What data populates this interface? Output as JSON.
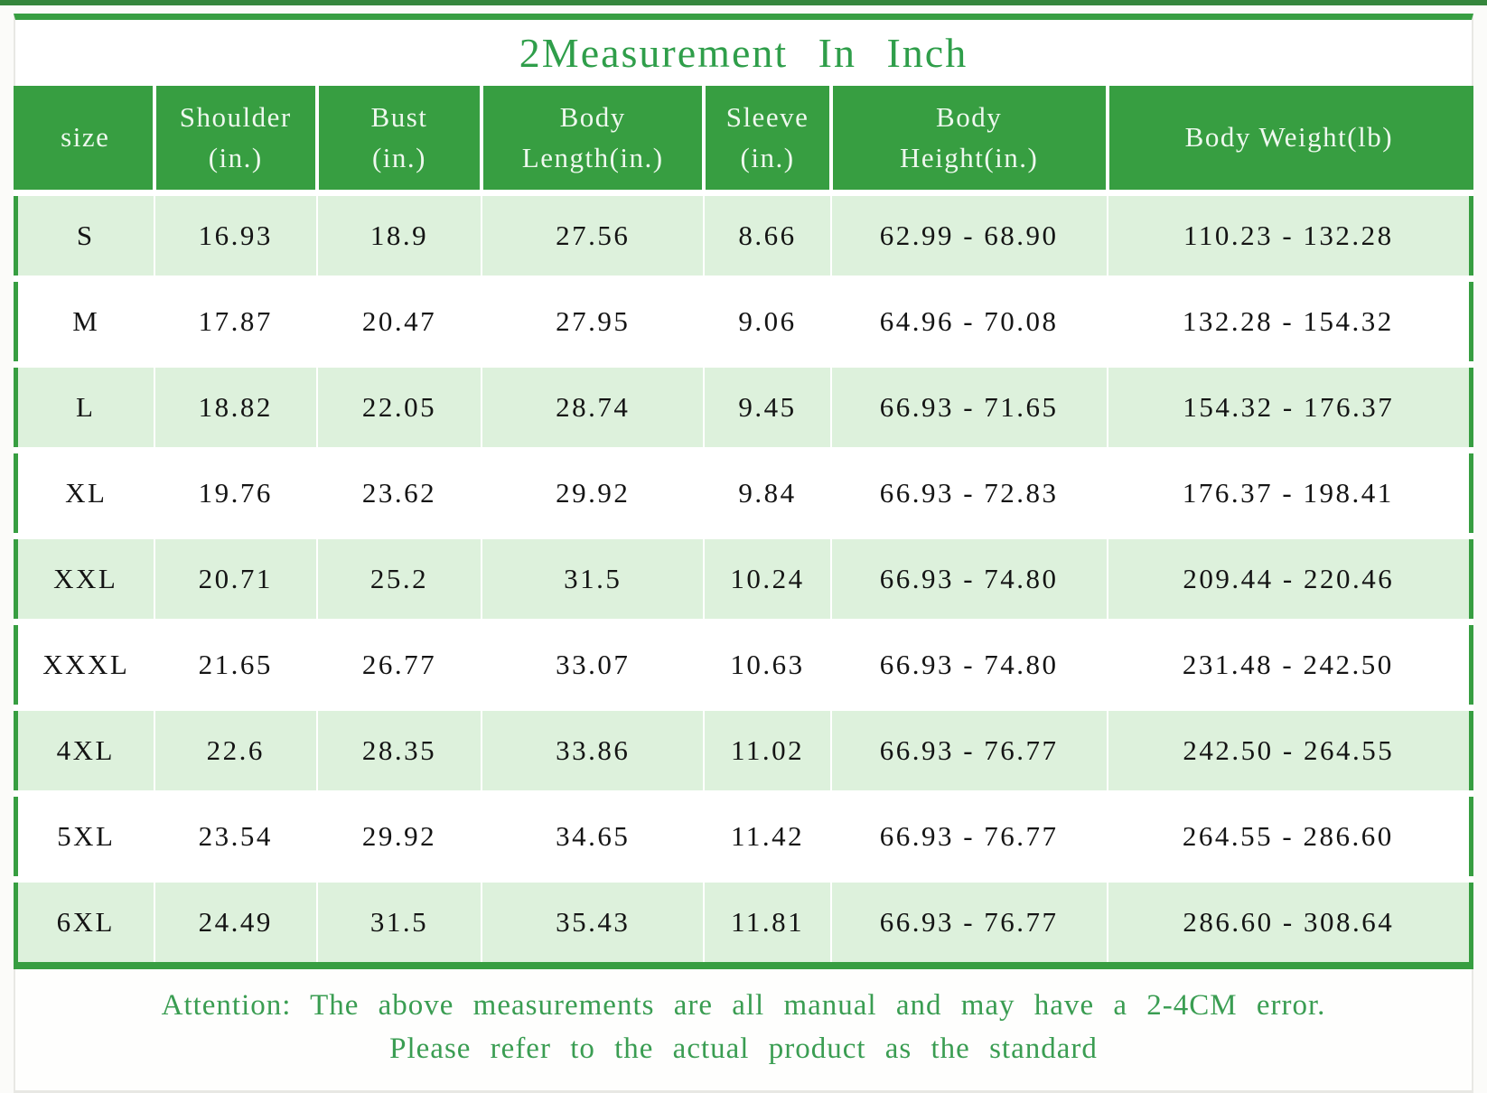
{
  "title": "2Measurement In Inch",
  "colors": {
    "accent_green": "#379e41",
    "top_strip_green": "#35863c",
    "row_light_green": "#ddf1dc",
    "title_text_green": "#2f9e4a",
    "footer_text_green": "#3a9d52",
    "header_text": "#eef8ee",
    "cell_text": "#141414"
  },
  "table": {
    "headers": [
      "size",
      "Shoulder\n(in.)",
      "Bust\n(in.)",
      "Body\nLength(in.)",
      "Sleeve\n(in.)",
      "Body\nHeight(in.)",
      "Body Weight(lb)"
    ],
    "rows": [
      [
        "S",
        "16.93",
        "18.9",
        "27.56",
        "8.66",
        "62.99 - 68.90",
        "110.23 - 132.28"
      ],
      [
        "M",
        "17.87",
        "20.47",
        "27.95",
        "9.06",
        "64.96 - 70.08",
        "132.28 - 154.32"
      ],
      [
        "L",
        "18.82",
        "22.05",
        "28.74",
        "9.45",
        "66.93 - 71.65",
        "154.32 - 176.37"
      ],
      [
        "XL",
        "19.76",
        "23.62",
        "29.92",
        "9.84",
        "66.93 - 72.83",
        "176.37 - 198.41"
      ],
      [
        "XXL",
        "20.71",
        "25.2",
        "31.5",
        "10.24",
        "66.93 - 74.80",
        "209.44 - 220.46"
      ],
      [
        "XXXL",
        "21.65",
        "26.77",
        "33.07",
        "10.63",
        "66.93 - 74.80",
        "231.48 - 242.50"
      ],
      [
        "4XL",
        "22.6",
        "28.35",
        "33.86",
        "11.02",
        "66.93 - 76.77",
        "242.50 - 264.55"
      ],
      [
        "5XL",
        "23.54",
        "29.92",
        "34.65",
        "11.42",
        "66.93 - 76.77",
        "264.55 - 286.60"
      ],
      [
        "6XL",
        "24.49",
        "31.5",
        "35.43",
        "11.81",
        "66.93 - 76.77",
        "286.60 - 308.64"
      ]
    ]
  },
  "footer": {
    "line1": "Attention: The above measurements are all manual and may have a 2-4CM error.",
    "line2": "Please refer to the actual product as the standard"
  },
  "chart_data": {
    "type": "table",
    "title": "2Measurement In Inch",
    "columns": [
      "size",
      "Shoulder (in.)",
      "Bust (in.)",
      "Body Length(in.)",
      "Sleeve (in.)",
      "Body Height(in.)",
      "Body Weight(lb)"
    ],
    "rows": [
      {
        "size": "S",
        "shoulder_in": 16.93,
        "bust_in": 18.9,
        "body_length_in": 27.56,
        "sleeve_in": 8.66,
        "body_height_in": "62.99 - 68.90",
        "body_weight_lb": "110.23 - 132.28"
      },
      {
        "size": "M",
        "shoulder_in": 17.87,
        "bust_in": 20.47,
        "body_length_in": 27.95,
        "sleeve_in": 9.06,
        "body_height_in": "64.96 - 70.08",
        "body_weight_lb": "132.28 - 154.32"
      },
      {
        "size": "L",
        "shoulder_in": 18.82,
        "bust_in": 22.05,
        "body_length_in": 28.74,
        "sleeve_in": 9.45,
        "body_height_in": "66.93 - 71.65",
        "body_weight_lb": "154.32 - 176.37"
      },
      {
        "size": "XL",
        "shoulder_in": 19.76,
        "bust_in": 23.62,
        "body_length_in": 29.92,
        "sleeve_in": 9.84,
        "body_height_in": "66.93 - 72.83",
        "body_weight_lb": "176.37 - 198.41"
      },
      {
        "size": "XXL",
        "shoulder_in": 20.71,
        "bust_in": 25.2,
        "body_length_in": 31.5,
        "sleeve_in": 10.24,
        "body_height_in": "66.93 - 74.80",
        "body_weight_lb": "209.44 - 220.46"
      },
      {
        "size": "XXXL",
        "shoulder_in": 21.65,
        "bust_in": 26.77,
        "body_length_in": 33.07,
        "sleeve_in": 10.63,
        "body_height_in": "66.93 - 74.80",
        "body_weight_lb": "231.48 - 242.50"
      },
      {
        "size": "4XL",
        "shoulder_in": 22.6,
        "bust_in": 28.35,
        "body_length_in": 33.86,
        "sleeve_in": 11.02,
        "body_height_in": "66.93 - 76.77",
        "body_weight_lb": "242.50 - 264.55"
      },
      {
        "size": "5XL",
        "shoulder_in": 23.54,
        "bust_in": 29.92,
        "body_length_in": 34.65,
        "sleeve_in": 11.42,
        "body_height_in": "66.93 - 76.77",
        "body_weight_lb": "264.55 - 286.60"
      },
      {
        "size": "6XL",
        "shoulder_in": 24.49,
        "bust_in": 31.5,
        "body_length_in": 35.43,
        "sleeve_in": 11.81,
        "body_height_in": "66.93 - 76.77",
        "body_weight_lb": "286.60 - 308.64"
      }
    ],
    "notes": [
      "Attention: The above measurements are all manual and may have a 2-4CM error.",
      "Please refer to the actual product as the standard"
    ]
  }
}
